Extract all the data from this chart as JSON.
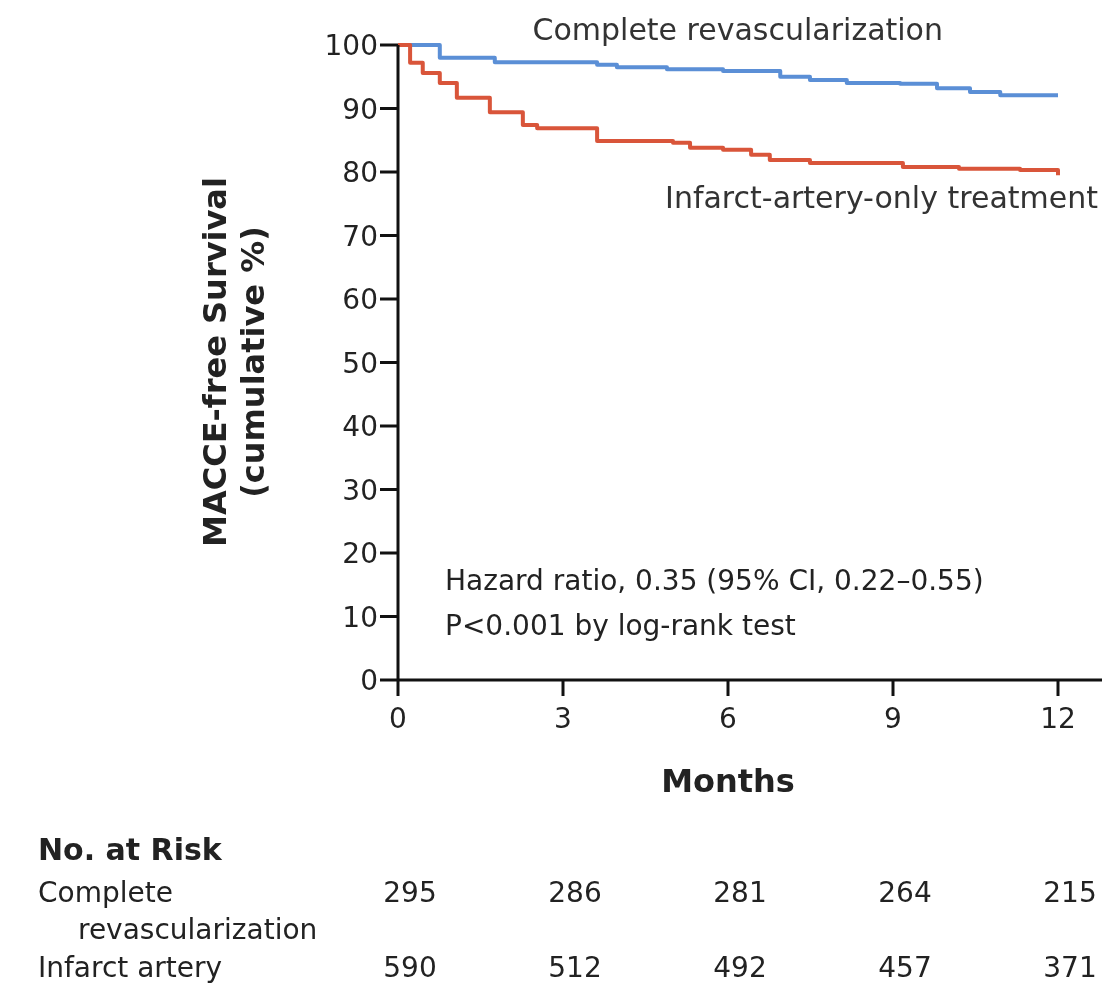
{
  "chart_data": {
    "type": "step",
    "xlabel": "Months",
    "ylabel": "MACCE-free Survival\n(cumulative %)",
    "xlim": [
      0,
      12.8
    ],
    "xticks": [
      0,
      3,
      6,
      9,
      12
    ],
    "ylim": [
      0,
      100
    ],
    "yticks": [
      0,
      10,
      20,
      30,
      40,
      50,
      60,
      70,
      80,
      90,
      100
    ],
    "grid": false,
    "line_style": "solid",
    "marker": "none",
    "series": [
      {
        "name": "Complete revascularization",
        "color": "#5b8fd6",
        "x": [
          0,
          0.76,
          1.76,
          3.62,
          3.98,
          4.89,
          5.91,
          6.95,
          7.49,
          8.16,
          9.13,
          9.8,
          10.4,
          10.95,
          12
        ],
        "values": [
          100,
          98.0,
          97.3,
          96.9,
          96.5,
          96.2,
          95.9,
          95.0,
          94.5,
          94.0,
          93.9,
          93.2,
          92.6,
          92.1,
          92.1
        ]
      },
      {
        "name": "Infarct-artery-only treatment",
        "color": "#d9553a",
        "x": [
          0,
          0.22,
          0.45,
          0.76,
          1.07,
          1.49,
          1.67,
          2.27,
          2.53,
          3.07,
          3.62,
          5.0,
          5.31,
          5.91,
          6.42,
          6.76,
          7.49,
          8.58,
          9.18,
          10.2,
          11.31,
          12
        ],
        "values": [
          100,
          97.2,
          95.6,
          94.0,
          91.7,
          91.7,
          89.4,
          87.4,
          86.9,
          86.9,
          84.9,
          84.6,
          83.8,
          83.5,
          82.7,
          81.9,
          81.4,
          81.4,
          80.8,
          80.5,
          80.3,
          79.5
        ]
      }
    ],
    "annotations": [
      "Hazard ratio, 0.35 (95% CI, 0.22–0.55)",
      "P<0.001 by log-rank test",
      "No. at Risk",
      "Complete\nrevascularization",
      "295",
      "286",
      "281",
      "264",
      "215",
      "Infarct artery",
      "590",
      "512",
      "492",
      "457",
      "371"
    ]
  }
}
